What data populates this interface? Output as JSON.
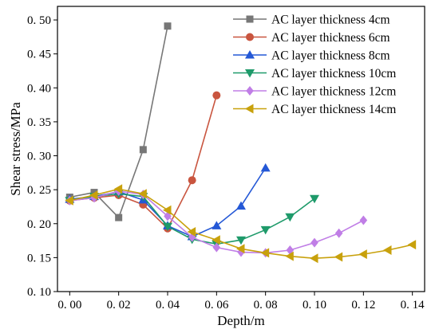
{
  "chart_data": {
    "type": "line",
    "xlabel": "Depth/m",
    "ylabel": "Shear stress/MPa",
    "xlim": [
      -0.005,
      0.145
    ],
    "ylim": [
      0.1,
      0.52
    ],
    "x_ticks": [
      0.0,
      0.02,
      0.04,
      0.06,
      0.08,
      0.1,
      0.12,
      0.14
    ],
    "x_tick_labels": [
      "0. 00",
      "0. 02",
      "0. 04",
      "0. 06",
      "0. 08",
      "0. 10",
      "0. 12",
      "0. 14"
    ],
    "y_ticks": [
      0.1,
      0.15,
      0.2,
      0.25,
      0.3,
      0.35,
      0.4,
      0.45,
      0.5
    ],
    "y_tick_labels": [
      "0. 10",
      "0. 15",
      "0. 20",
      "0. 25",
      "0. 30",
      "0. 35",
      "0. 40",
      "0. 45",
      "0. 50"
    ],
    "grid": false,
    "legend_position": "top-right",
    "series": [
      {
        "name": "AC layer thickness 4cm",
        "color": "#777777",
        "marker": "square",
        "x": [
          0.0,
          0.01,
          0.02,
          0.03,
          0.04
        ],
        "y": [
          0.239,
          0.246,
          0.209,
          0.309,
          0.491
        ]
      },
      {
        "name": "AC layer thickness 6cm",
        "color": "#c9553f",
        "marker": "circle",
        "x": [
          0.0,
          0.01,
          0.02,
          0.03,
          0.04,
          0.05,
          0.06
        ],
        "y": [
          0.234,
          0.238,
          0.242,
          0.228,
          0.193,
          0.264,
          0.389
        ]
      },
      {
        "name": "AC layer thickness 8cm",
        "color": "#2458d6",
        "marker": "triangle-up",
        "x": [
          0.0,
          0.01,
          0.02,
          0.03,
          0.04,
          0.05,
          0.06,
          0.07,
          0.08
        ],
        "y": [
          0.236,
          0.24,
          0.247,
          0.235,
          0.197,
          0.181,
          0.197,
          0.226,
          0.282
        ]
      },
      {
        "name": "AC layer thickness 10cm",
        "color": "#1e9a6a",
        "marker": "triangle-down",
        "x": [
          0.0,
          0.01,
          0.02,
          0.03,
          0.04,
          0.05,
          0.06,
          0.07,
          0.08,
          0.09,
          0.1
        ],
        "y": [
          0.234,
          0.24,
          0.244,
          0.24,
          0.196,
          0.177,
          0.17,
          0.176,
          0.191,
          0.21,
          0.237
        ]
      },
      {
        "name": "AC layer thickness 12cm",
        "color": "#c07ee6",
        "marker": "diamond",
        "x": [
          0.0,
          0.01,
          0.02,
          0.03,
          0.04,
          0.05,
          0.06,
          0.07,
          0.08,
          0.09,
          0.1,
          0.11,
          0.12
        ],
        "y": [
          0.234,
          0.238,
          0.248,
          0.243,
          0.211,
          0.18,
          0.165,
          0.158,
          0.157,
          0.161,
          0.172,
          0.186,
          0.205
        ]
      },
      {
        "name": "AC layer thickness 14cm",
        "color": "#c8a10c",
        "marker": "triangle-left",
        "x": [
          0.0,
          0.01,
          0.02,
          0.03,
          0.04,
          0.05,
          0.06,
          0.07,
          0.08,
          0.09,
          0.1,
          0.11,
          0.12,
          0.13,
          0.14
        ],
        "y": [
          0.234,
          0.242,
          0.251,
          0.244,
          0.22,
          0.188,
          0.176,
          0.163,
          0.157,
          0.152,
          0.149,
          0.151,
          0.155,
          0.161,
          0.169
        ]
      }
    ]
  }
}
